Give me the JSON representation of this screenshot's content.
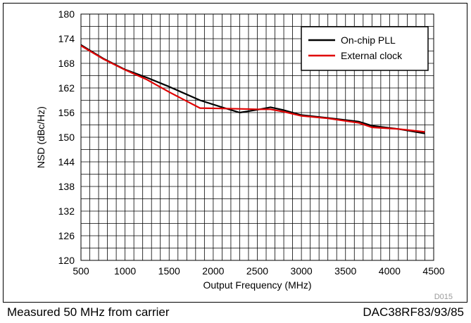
{
  "chart_data": {
    "type": "line",
    "xlabel": "Output Frequency (MHz)",
    "ylabel": "NSD (dBc/Hz)",
    "xlim": [
      500,
      4500
    ],
    "ylim": [
      120,
      180
    ],
    "xticks": [
      500,
      1000,
      1500,
      2000,
      2500,
      3000,
      3500,
      4000,
      4500
    ],
    "yticks": [
      120,
      126,
      132,
      138,
      144,
      150,
      156,
      162,
      168,
      174,
      180
    ],
    "grid": true,
    "legend_position": "top-right",
    "series": [
      {
        "name": "On-chip PLL",
        "color": "#000000",
        "x": [
          500,
          750,
          1000,
          1250,
          1500,
          1850,
          2100,
          2300,
          2500,
          2650,
          2800,
          3000,
          3300,
          3650,
          3800,
          4100,
          4400
        ],
        "y": [
          172.5,
          169.2,
          166.5,
          164.5,
          162.3,
          159.0,
          157.3,
          156.0,
          156.7,
          157.3,
          156.6,
          155.4,
          154.7,
          153.8,
          152.8,
          152.0,
          150.9
        ]
      },
      {
        "name": "External clock",
        "color": "#e00000",
        "x": [
          500,
          750,
          1000,
          1250,
          1500,
          1850,
          2100,
          2300,
          2500,
          2650,
          2800,
          3000,
          3300,
          3650,
          3800,
          4100,
          4400
        ],
        "y": [
          172.3,
          169.1,
          166.4,
          164.0,
          161.0,
          157.1,
          157.0,
          156.9,
          156.8,
          156.8,
          156.2,
          155.2,
          154.6,
          153.5,
          152.4,
          152.0,
          151.3
        ]
      }
    ]
  },
  "code": "D015",
  "footer": {
    "left": "Measured 50 MHz from carrier",
    "right": "DAC38RF83/93/85"
  }
}
